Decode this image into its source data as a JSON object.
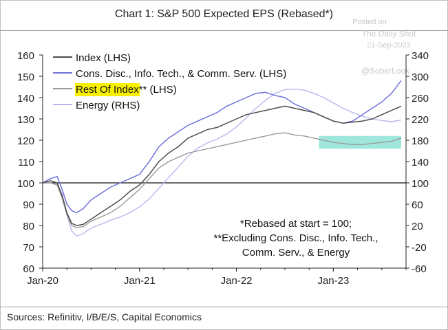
{
  "title": "Chart 1: S&P 500 Expected EPS (Rebased*)",
  "source": "Sources: Refinitiv, I/B/E/S, Capital Economics",
  "watermark": {
    "line1": "Posted on",
    "line2": "The Daily Shot",
    "line3": "21-Sep-2023",
    "handle": "@SoberLook"
  },
  "colors": {
    "index": "#4d4d4d",
    "cons_disc": "#6f73db",
    "rest": "#9a9a9a",
    "energy": "#b9b6ef",
    "highlight_label": "#f7f000",
    "highlight_box": "#8ee3d6"
  },
  "chart_data": {
    "type": "line",
    "xlabels": [
      "Jan-20",
      "Jan-21",
      "Jan-22",
      "Jan-23"
    ],
    "xrange": [
      2020.0,
      2023.75
    ],
    "y_left": {
      "range": [
        60,
        160
      ],
      "ticks": [
        60,
        70,
        80,
        90,
        100,
        110,
        120,
        130,
        140,
        150,
        160
      ]
    },
    "y_right": {
      "range": [
        -60,
        340
      ],
      "ticks": [
        -60,
        -20,
        20,
        60,
        100,
        140,
        180,
        220,
        260,
        300,
        340
      ]
    },
    "reference_line": 100,
    "legend": [
      {
        "label": "Index (LHS)",
        "series": "index"
      },
      {
        "label": "Cons. Disc., Info. Tech., & Comm. Serv. (LHS)",
        "series": "cons_disc"
      },
      {
        "label": "Rest Of Index",
        "suffix": "** (LHS)",
        "series": "rest",
        "highlight": true
      },
      {
        "label": "Energy (RHS)",
        "series": "energy"
      }
    ],
    "annotation": [
      "*Rebased at start = 100;",
      "**Excluding Cons. Disc., Info. Tech.,",
      "Comm. Serv., & Energy"
    ],
    "highlight_region": {
      "x": [
        2022.85,
        2023.7
      ],
      "y": [
        116,
        122
      ]
    },
    "series": [
      {
        "name": "index",
        "axis": "left",
        "points": [
          [
            2020.0,
            100
          ],
          [
            2020.08,
            101
          ],
          [
            2020.15,
            100
          ],
          [
            2020.2,
            94
          ],
          [
            2020.25,
            86
          ],
          [
            2020.3,
            81
          ],
          [
            2020.35,
            80
          ],
          [
            2020.42,
            80.5
          ],
          [
            2020.5,
            83
          ],
          [
            2020.6,
            86
          ],
          [
            2020.7,
            89
          ],
          [
            2020.8,
            92
          ],
          [
            2020.9,
            96
          ],
          [
            2021.0,
            99
          ],
          [
            2021.1,
            104
          ],
          [
            2021.2,
            110
          ],
          [
            2021.3,
            114
          ],
          [
            2021.4,
            117
          ],
          [
            2021.5,
            121
          ],
          [
            2021.6,
            123
          ],
          [
            2021.7,
            125
          ],
          [
            2021.8,
            126
          ],
          [
            2021.9,
            128
          ],
          [
            2022.0,
            130
          ],
          [
            2022.1,
            132
          ],
          [
            2022.2,
            133
          ],
          [
            2022.3,
            134
          ],
          [
            2022.4,
            135
          ],
          [
            2022.5,
            136
          ],
          [
            2022.6,
            135
          ],
          [
            2022.7,
            134
          ],
          [
            2022.8,
            133
          ],
          [
            2022.9,
            131
          ],
          [
            2023.0,
            129
          ],
          [
            2023.1,
            128
          ],
          [
            2023.2,
            128.5
          ],
          [
            2023.3,
            129
          ],
          [
            2023.4,
            130
          ],
          [
            2023.5,
            132
          ],
          [
            2023.6,
            134
          ],
          [
            2023.7,
            136
          ]
        ]
      },
      {
        "name": "cons_disc",
        "axis": "left",
        "points": [
          [
            2020.0,
            100
          ],
          [
            2020.08,
            102
          ],
          [
            2020.15,
            103
          ],
          [
            2020.2,
            97
          ],
          [
            2020.25,
            90
          ],
          [
            2020.3,
            87
          ],
          [
            2020.35,
            86
          ],
          [
            2020.42,
            88
          ],
          [
            2020.5,
            92
          ],
          [
            2020.6,
            95
          ],
          [
            2020.7,
            98
          ],
          [
            2020.8,
            100
          ],
          [
            2020.9,
            102
          ],
          [
            2021.0,
            104
          ],
          [
            2021.1,
            110
          ],
          [
            2021.2,
            117
          ],
          [
            2021.3,
            121
          ],
          [
            2021.4,
            124
          ],
          [
            2021.5,
            127
          ],
          [
            2021.6,
            129
          ],
          [
            2021.7,
            131
          ],
          [
            2021.8,
            133
          ],
          [
            2021.9,
            136
          ],
          [
            2022.0,
            138
          ],
          [
            2022.1,
            140
          ],
          [
            2022.2,
            142
          ],
          [
            2022.3,
            142.5
          ],
          [
            2022.4,
            141
          ],
          [
            2022.5,
            140
          ],
          [
            2022.6,
            137
          ],
          [
            2022.7,
            135
          ],
          [
            2022.8,
            133
          ],
          [
            2022.9,
            131
          ],
          [
            2023.0,
            129
          ],
          [
            2023.1,
            128
          ],
          [
            2023.2,
            129
          ],
          [
            2023.3,
            132
          ],
          [
            2023.4,
            135
          ],
          [
            2023.5,
            138
          ],
          [
            2023.6,
            142
          ],
          [
            2023.7,
            148
          ]
        ]
      },
      {
        "name": "rest",
        "axis": "left",
        "points": [
          [
            2020.0,
            100
          ],
          [
            2020.08,
            100
          ],
          [
            2020.15,
            99
          ],
          [
            2020.2,
            93
          ],
          [
            2020.25,
            85
          ],
          [
            2020.3,
            80
          ],
          [
            2020.35,
            79
          ],
          [
            2020.42,
            79.5
          ],
          [
            2020.5,
            82
          ],
          [
            2020.6,
            84
          ],
          [
            2020.7,
            86
          ],
          [
            2020.8,
            89
          ],
          [
            2020.9,
            93
          ],
          [
            2021.0,
            97
          ],
          [
            2021.1,
            102
          ],
          [
            2021.2,
            107
          ],
          [
            2021.3,
            110
          ],
          [
            2021.4,
            112
          ],
          [
            2021.5,
            114
          ],
          [
            2021.6,
            115
          ],
          [
            2021.7,
            116
          ],
          [
            2021.8,
            117
          ],
          [
            2021.9,
            118
          ],
          [
            2022.0,
            119
          ],
          [
            2022.1,
            120
          ],
          [
            2022.2,
            121
          ],
          [
            2022.3,
            122
          ],
          [
            2022.4,
            123
          ],
          [
            2022.5,
            123.5
          ],
          [
            2022.6,
            122.5
          ],
          [
            2022.7,
            122
          ],
          [
            2022.8,
            121
          ],
          [
            2022.9,
            120
          ],
          [
            2023.0,
            119
          ],
          [
            2023.1,
            118.5
          ],
          [
            2023.2,
            118
          ],
          [
            2023.3,
            118
          ],
          [
            2023.4,
            118.5
          ],
          [
            2023.5,
            119
          ],
          [
            2023.6,
            119.5
          ],
          [
            2023.7,
            121
          ]
        ]
      },
      {
        "name": "energy",
        "axis": "right",
        "points": [
          [
            2020.0,
            100
          ],
          [
            2020.08,
            100
          ],
          [
            2020.15,
            96
          ],
          [
            2020.2,
            80
          ],
          [
            2020.25,
            40
          ],
          [
            2020.3,
            10
          ],
          [
            2020.35,
            0
          ],
          [
            2020.42,
            5
          ],
          [
            2020.5,
            15
          ],
          [
            2020.6,
            22
          ],
          [
            2020.7,
            30
          ],
          [
            2020.8,
            36
          ],
          [
            2020.9,
            44
          ],
          [
            2021.0,
            55
          ],
          [
            2021.1,
            70
          ],
          [
            2021.2,
            90
          ],
          [
            2021.3,
            110
          ],
          [
            2021.4,
            130
          ],
          [
            2021.5,
            150
          ],
          [
            2021.6,
            165
          ],
          [
            2021.7,
            175
          ],
          [
            2021.8,
            182
          ],
          [
            2021.9,
            192
          ],
          [
            2022.0,
            205
          ],
          [
            2022.1,
            222
          ],
          [
            2022.2,
            240
          ],
          [
            2022.3,
            255
          ],
          [
            2022.4,
            268
          ],
          [
            2022.5,
            275
          ],
          [
            2022.6,
            276
          ],
          [
            2022.7,
            274
          ],
          [
            2022.8,
            268
          ],
          [
            2022.9,
            260
          ],
          [
            2023.0,
            250
          ],
          [
            2023.1,
            240
          ],
          [
            2023.2,
            232
          ],
          [
            2023.3,
            225
          ],
          [
            2023.4,
            220
          ],
          [
            2023.5,
            217
          ],
          [
            2023.6,
            215
          ],
          [
            2023.7,
            218
          ]
        ]
      }
    ]
  }
}
